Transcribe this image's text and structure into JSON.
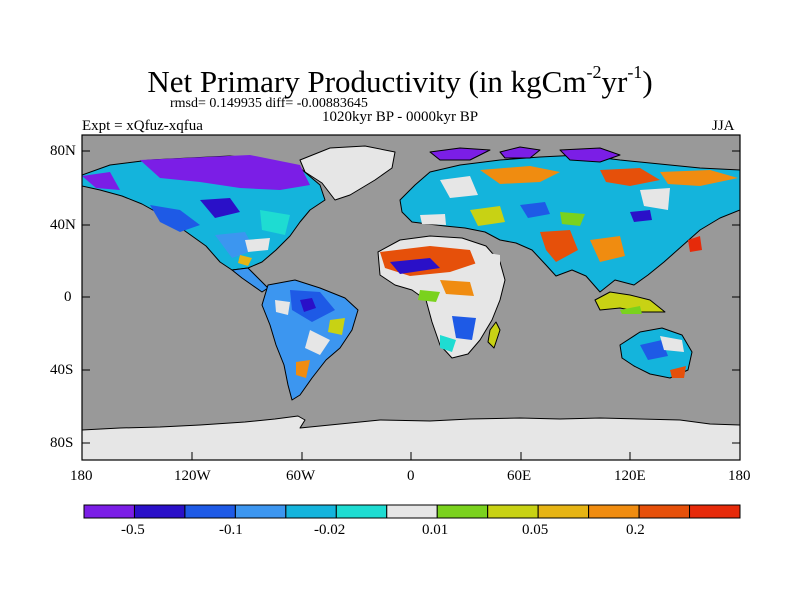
{
  "header": {
    "title_main": "Net Primary Productivity (in kgCm",
    "title_exp1": "-2",
    "title_mid": "yr",
    "title_exp2": "-1",
    "title_end": ")",
    "stats": "rmsd= 0.149935 diff= -0.00883645",
    "period": "1020kyr BP - 0000kyr BP",
    "experiment": "Expt = xQfuz-xqfua",
    "season": "JJA"
  },
  "axes": {
    "y_ticks": [
      "80N",
      "40N",
      "0",
      "40S",
      "80S"
    ],
    "x_ticks": [
      "180",
      "120W",
      "60W",
      "0",
      "60E",
      "120E",
      "180"
    ]
  },
  "colorbar": {
    "colors": [
      "#7b1ee6",
      "#2a10c8",
      "#1e5ae6",
      "#3c96f0",
      "#14b4dc",
      "#1edcd2",
      "#e6e6e6",
      "#7ad21e",
      "#c8d214",
      "#e6b414",
      "#f08c10",
      "#e6500a",
      "#e62a0a"
    ],
    "labels": [
      "-0.5",
      "-0.1",
      "-0.02",
      "0.01",
      "0.05",
      "0.2"
    ]
  },
  "map": {
    "ocean_color": "#999999",
    "ice_color": "#e6e6e6"
  }
}
